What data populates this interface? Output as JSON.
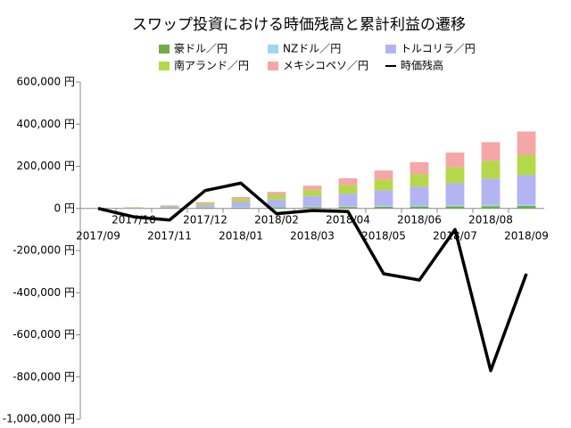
{
  "chart_data": {
    "type": "bar",
    "title": "スワップ投資における時価残高と累計利益の遷移",
    "categories": [
      "2017/09",
      "2017/10",
      "2017/11",
      "2017/12",
      "2018/01",
      "2018/02",
      "2018/03",
      "2018/04",
      "2018/05",
      "2018/06",
      "2018/07",
      "2018/08",
      "2018/09"
    ],
    "series": [
      {
        "name": "豪ドル／円",
        "type": "bar",
        "color": "#70ad47",
        "values": [
          0,
          1000,
          2000,
          3000,
          4000,
          5000,
          6000,
          7000,
          8000,
          9000,
          10000,
          11000,
          12000
        ]
      },
      {
        "name": "NZドル／円",
        "type": "bar",
        "color": "#9dd7f3",
        "values": [
          0,
          500,
          1000,
          1500,
          2000,
          2500,
          3000,
          3500,
          4000,
          4500,
          5000,
          5500,
          6000
        ]
      },
      {
        "name": "トルコリラ／円",
        "type": "bar",
        "color": "#b4b4f2",
        "values": [
          0,
          2000,
          6000,
          12000,
          25000,
          35000,
          50000,
          60000,
          75000,
          90000,
          105000,
          125000,
          140000
        ]
      },
      {
        "name": "南アランド／円",
        "type": "bar",
        "color": "#b5d84a",
        "values": [
          0,
          1500,
          4000,
          8000,
          14000,
          22000,
          28000,
          40000,
          50000,
          60000,
          75000,
          85000,
          97000
        ]
      },
      {
        "name": "メキシコペソ／円",
        "type": "bar",
        "color": "#f5a6a6",
        "values": [
          0,
          1000,
          2000,
          5500,
          9000,
          14000,
          21000,
          33000,
          43000,
          56000,
          70000,
          88000,
          110000
        ]
      },
      {
        "name": "時価残高",
        "type": "line",
        "color": "#000000",
        "values": [
          0,
          -40000,
          -55000,
          85000,
          120000,
          -25000,
          -10000,
          -15000,
          -310000,
          -340000,
          -100000,
          -770000,
          -310000
        ]
      }
    ],
    "ylim": [
      -1000000,
      600000
    ],
    "yticks": [
      {
        "value": -1000000,
        "label": "-1,000,000 円"
      },
      {
        "value": -800000,
        "label": "-800,000 円"
      },
      {
        "value": -600000,
        "label": "-600,000 円"
      },
      {
        "value": -400000,
        "label": "-400,000 円"
      },
      {
        "value": -200000,
        "label": "-200,000 円"
      },
      {
        "value": 0,
        "label": "0 円"
      },
      {
        "value": 200000,
        "label": "200,000 円"
      },
      {
        "value": 400000,
        "label": "400,000 円"
      },
      {
        "value": 600000,
        "label": "600,000 円"
      }
    ],
    "grid": false,
    "legend": "top"
  }
}
